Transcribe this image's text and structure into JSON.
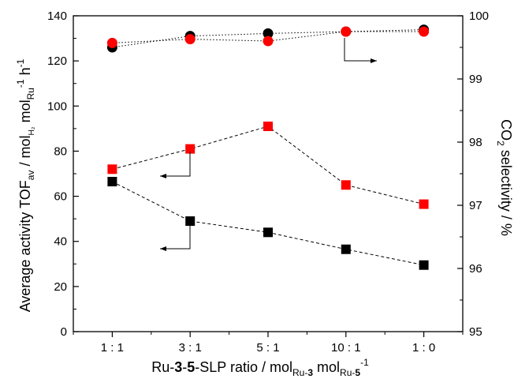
{
  "chart_data": {
    "type": "scatter",
    "categories": [
      "1 : 1",
      "3 : 1",
      "5 : 1",
      "10 : 1",
      "1 : 0"
    ],
    "left_axis": {
      "label_main": "Average activity TOF",
      "label_sub_av": "av",
      "label_unit_part1": " / mol",
      "label_sub_h2": "H₂",
      "label_unit_part2": " mol",
      "label_sub_ru": "Ru",
      "label_sup_m1a": "-1",
      "label_unit_part3": " h",
      "label_sup_m1b": "-1",
      "ylim": [
        0,
        140
      ],
      "ticks": [
        "0",
        "20",
        "40",
        "60",
        "80",
        "100",
        "120",
        "140"
      ]
    },
    "right_axis": {
      "label_co": "CO",
      "label_sub_2": "2",
      "label_rest": " selectivity / %",
      "ylim": [
        95,
        100
      ],
      "ticks": [
        "95",
        "96",
        "97",
        "98",
        "99",
        "100"
      ]
    },
    "x_axis": {
      "label_part1": "Ru-",
      "label_bold1": "3",
      "label_dash": "-",
      "label_bold2": "5",
      "label_part2": "-SLP ratio / mol",
      "label_sub1": "Ru-",
      "label_sub1_bold": "3",
      "label_part3": " mol",
      "label_sub2": "Ru-",
      "label_sub2_bold": "5",
      "label_sup": "-1"
    },
    "series": [
      {
        "marker": "square",
        "color": "#000000",
        "axis": "left",
        "values": [
          66.5,
          49,
          44,
          36.5,
          29.5
        ]
      },
      {
        "marker": "square",
        "color": "#ff0000",
        "axis": "left",
        "values": [
          72,
          81,
          91,
          65,
          56.5
        ]
      },
      {
        "marker": "circle",
        "color": "#000000",
        "axis": "right",
        "values": [
          99.5,
          99.68,
          99.72,
          99.75,
          99.78
        ]
      },
      {
        "marker": "circle",
        "color": "#ff0000",
        "axis": "right",
        "values": [
          99.57,
          99.63,
          99.6,
          99.75,
          99.75
        ]
      }
    ],
    "grid": false
  }
}
